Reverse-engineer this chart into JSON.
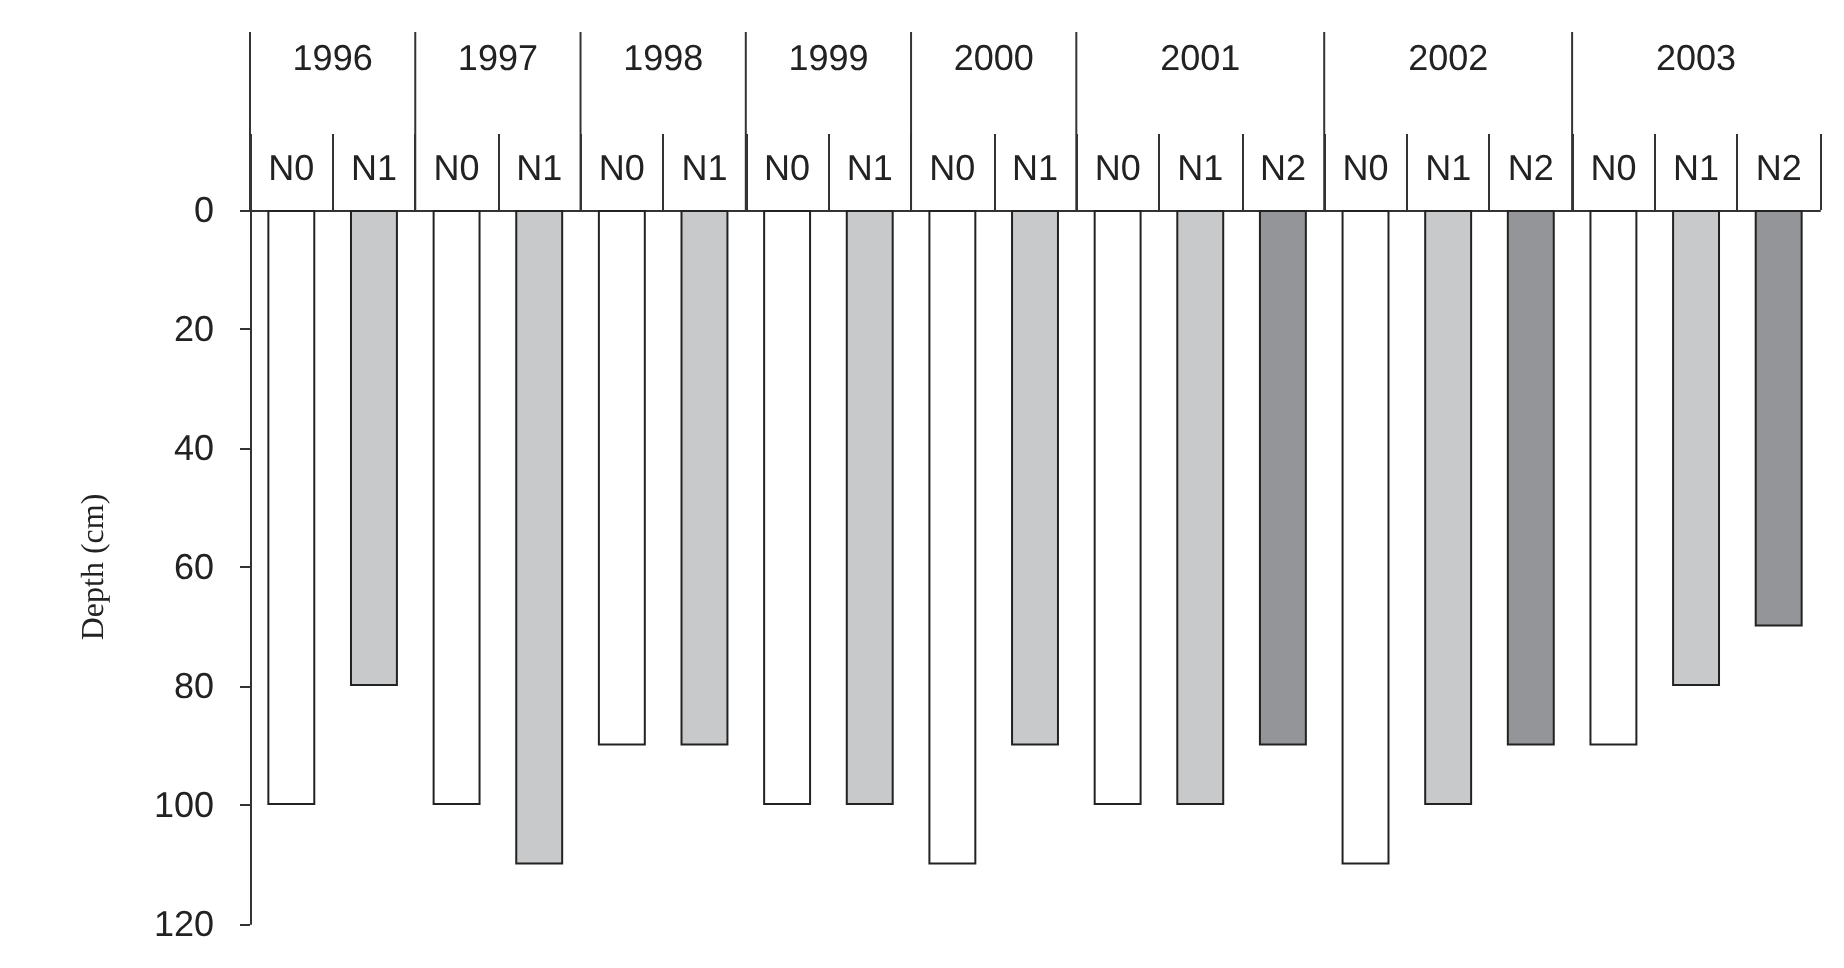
{
  "chart_data": {
    "type": "bar",
    "ylabel": "Depth (cm)",
    "categories": [
      "N0",
      "N1",
      "N0",
      "N1",
      "N0",
      "N1",
      "N0",
      "N1",
      "N0",
      "N1",
      "N0",
      "N1",
      "N2",
      "N0",
      "N1",
      "N2",
      "N0",
      "N1",
      "N2"
    ],
    "values": [
      100,
      80,
      100,
      110,
      90,
      90,
      100,
      100,
      110,
      90,
      100,
      100,
      90,
      110,
      100,
      90,
      90,
      80,
      70
    ],
    "colors": [
      "#ffffff",
      "#c8c9cb",
      "#ffffff",
      "#c8c9cb",
      "#ffffff",
      "#c8c9cb",
      "#ffffff",
      "#c8c9cb",
      "#ffffff",
      "#c8c9cb",
      "#ffffff",
      "#c8c9cb",
      "#939598",
      "#ffffff",
      "#c8c9cb",
      "#939598",
      "#ffffff",
      "#c8c9cb",
      "#939598"
    ],
    "annotations": [
      "1996",
      "1997",
      "1998",
      "1999",
      "2000",
      "2001",
      "2002",
      "2003"
    ],
    "ylim": [
      120,
      0
    ],
    "yticks": [
      0,
      20,
      40,
      60,
      80,
      100,
      120
    ]
  }
}
